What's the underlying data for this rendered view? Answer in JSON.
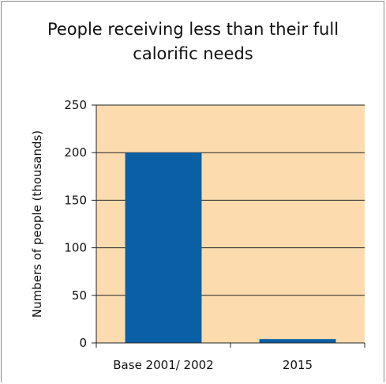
{
  "chart_data": {
    "type": "bar",
    "title": "People receiving less than their full\ncalorific needs",
    "ylabel": "Numbers of people (thousands)",
    "xlabel": "",
    "categories": [
      "Base 2001/ 2002",
      "2015"
    ],
    "values": [
      200,
      4
    ],
    "ylim": [
      0,
      250
    ],
    "yticks": [
      0,
      50,
      100,
      150,
      200,
      250
    ],
    "grid": true,
    "legend": "none",
    "colors": {
      "plot_background": "#fcdcae",
      "bar": "#0a5fa5",
      "grid": "#222222"
    }
  }
}
